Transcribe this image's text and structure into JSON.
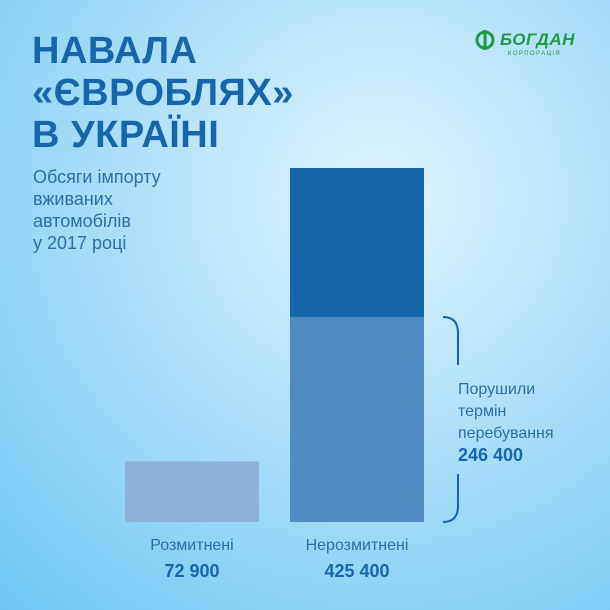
{
  "title_lines": [
    "НАВАЛА",
    "«ЄВРОБЛЯХ»",
    "В УКРАЇНІ"
  ],
  "subtitle_lines": [
    "Обсяги імпорту",
    "вживаних",
    "автомобілів",
    "у 2017 році"
  ],
  "logo": {
    "text": "БОГДАН",
    "subtext": "КОРПОРАЦІЯ",
    "color": "#1f9a45"
  },
  "colors": {
    "title": "#1666ac",
    "text": "#2b6fa6",
    "bar_cleared": "#8db2d7",
    "bar_total_top": "#1666ac",
    "bar_total_segment": "#4f8cc3",
    "bracket": "#1666ac"
  },
  "chart_data": {
    "type": "bar",
    "categories": [
      "Розмитнені",
      "Нерозмитнені"
    ],
    "values": [
      72900,
      425400
    ],
    "value_labels": [
      "72 900",
      "425 400"
    ],
    "segments": [
      {
        "category": "Нерозмитнені",
        "value": 246400,
        "label": "Порушили термін перебування",
        "value_label": "246 400"
      }
    ],
    "ylim": [
      0,
      425400
    ],
    "grid": false,
    "legend": "none"
  },
  "annotation": {
    "lines": [
      "Порушили",
      "термін",
      "перебування"
    ],
    "value": "246 400"
  }
}
